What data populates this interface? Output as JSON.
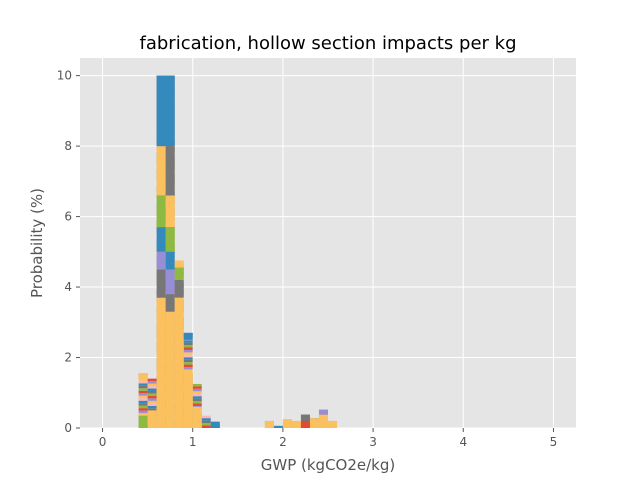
{
  "chart_data": {
    "type": "bar",
    "subtype": "stacked histogram",
    "title": "fabrication, hollow section impacts per kg",
    "xlabel": "GWP (kgCO2e/kg)",
    "ylabel": "Probability (%)",
    "xlim": [
      -0.25,
      5.25
    ],
    "ylim": [
      0,
      10.5
    ],
    "xticks": [
      "0",
      "1",
      "2",
      "3",
      "4",
      "5"
    ],
    "yticks": [
      "0",
      "2",
      "4",
      "6",
      "8",
      "10"
    ],
    "grid": true,
    "legend": "none",
    "bin_width": 0.1,
    "bins": [
      {
        "x": 0.4,
        "total": 1.55
      },
      {
        "x": 0.5,
        "total": 1.4
      },
      {
        "x": 0.6,
        "total": 10.0
      },
      {
        "x": 0.7,
        "total": 10.0
      },
      {
        "x": 0.8,
        "total": 4.75
      },
      {
        "x": 0.9,
        "total": 2.7
      },
      {
        "x": 1.0,
        "total": 1.25
      },
      {
        "x": 1.1,
        "total": 0.35
      },
      {
        "x": 1.2,
        "total": 0.18
      },
      {
        "x": 1.8,
        "total": 0.2
      },
      {
        "x": 1.9,
        "total": 0.06
      },
      {
        "x": 2.0,
        "total": 0.25
      },
      {
        "x": 2.1,
        "total": 0.2
      },
      {
        "x": 2.2,
        "total": 0.38
      },
      {
        "x": 2.3,
        "total": 0.28
      },
      {
        "x": 2.4,
        "total": 0.52
      },
      {
        "x": 2.5,
        "total": 0.2
      }
    ],
    "segments": [
      {
        "x": 0.6,
        "y0": 0.0,
        "y1": 3.7,
        "color": "#FBC15E"
      },
      {
        "x": 0.6,
        "y0": 3.7,
        "y1": 4.5,
        "color": "#777777"
      },
      {
        "x": 0.6,
        "y0": 4.5,
        "y1": 5.0,
        "color": "#988ED5"
      },
      {
        "x": 0.6,
        "y0": 5.0,
        "y1": 5.7,
        "color": "#348ABD"
      },
      {
        "x": 0.6,
        "y0": 5.7,
        "y1": 6.6,
        "color": "#8EBA42"
      },
      {
        "x": 0.6,
        "y0": 6.6,
        "y1": 8.0,
        "color": "#FBC15E"
      },
      {
        "x": 0.6,
        "y0": 8.0,
        "y1": 10.0,
        "color": "#777777"
      },
      {
        "x": 0.7,
        "y0": 0.0,
        "y1": 3.3,
        "color": "#FBC15E"
      },
      {
        "x": 0.7,
        "y0": 3.3,
        "y1": 3.8,
        "color": "#777777"
      },
      {
        "x": 0.7,
        "y0": 3.8,
        "y1": 4.5,
        "color": "#988ED5"
      },
      {
        "x": 0.7,
        "y0": 4.5,
        "y1": 5.0,
        "color": "#348ABD"
      },
      {
        "x": 0.7,
        "y0": 5.0,
        "y1": 5.7,
        "color": "#8EBA42"
      },
      {
        "x": 0.7,
        "y0": 5.7,
        "y1": 6.6,
        "color": "#FBC15E"
      },
      {
        "x": 0.7,
        "y0": 6.6,
        "y1": 8.0,
        "color": "#777777"
      },
      {
        "x": 0.7,
        "y0": 8.0,
        "y1": 10.0,
        "color": "#988ED5"
      },
      {
        "x": 0.6,
        "y0": 8.0,
        "y1": 10.0,
        "color": "#348ABD",
        "span": 2
      },
      {
        "x": 0.8,
        "y0": 0.0,
        "y1": 3.7,
        "color": "#FBC15E"
      },
      {
        "x": 0.8,
        "y0": 3.7,
        "y1": 4.2,
        "color": "#777777"
      },
      {
        "x": 0.8,
        "y0": 4.2,
        "y1": 4.55,
        "color": "#8EBA42"
      },
      {
        "x": 0.8,
        "y0": 4.55,
        "y1": 4.75,
        "color": "#FBC15E"
      },
      {
        "x": 0.9,
        "y0": 0.0,
        "y1": 1.6,
        "color": "#FBC15E"
      },
      {
        "x": 0.9,
        "y0": 2.5,
        "y1": 2.7,
        "color": "#348ABD"
      },
      {
        "x": 1.0,
        "y0": 0.0,
        "y1": 0.6,
        "color": "#FBC15E"
      },
      {
        "x": 0.4,
        "y0": 0.0,
        "y1": 0.35,
        "color": "#8EBA42"
      },
      {
        "x": 0.4,
        "y0": 1.4,
        "y1": 1.55,
        "color": "#FBC15E"
      },
      {
        "x": 0.5,
        "y0": 0.0,
        "y1": 0.5,
        "color": "#FBC15E"
      },
      {
        "x": 1.2,
        "y0": 0.0,
        "y1": 0.18,
        "color": "#348ABD"
      },
      {
        "x": 1.8,
        "y0": 0.0,
        "y1": 0.2,
        "color": "#FBC15E"
      },
      {
        "x": 1.9,
        "y0": 0.0,
        "y1": 0.06,
        "color": "#348ABD"
      },
      {
        "x": 2.0,
        "y0": 0.0,
        "y1": 0.25,
        "color": "#FBC15E"
      },
      {
        "x": 2.1,
        "y0": 0.0,
        "y1": 0.2,
        "color": "#FBC15E"
      },
      {
        "x": 2.2,
        "y0": 0.0,
        "y1": 0.2,
        "color": "#E24A33"
      },
      {
        "x": 2.2,
        "y0": 0.2,
        "y1": 0.38,
        "color": "#777777"
      },
      {
        "x": 2.3,
        "y0": 0.0,
        "y1": 0.28,
        "color": "#FBC15E"
      },
      {
        "x": 2.4,
        "y0": 0.0,
        "y1": 0.38,
        "color": "#FBC15E"
      },
      {
        "x": 2.4,
        "y0": 0.38,
        "y1": 0.52,
        "color": "#988ED5"
      },
      {
        "x": 2.5,
        "y0": 0.0,
        "y1": 0.2,
        "color": "#FBC15E"
      }
    ],
    "colors": {
      "red": "#E24A33",
      "blue": "#348ABD",
      "purple": "#988ED5",
      "gray": "#777777",
      "yellow": "#FBC15E",
      "green": "#8EBA42",
      "pink": "#FFB5B8",
      "axes_background": "#E5E5E5",
      "grid": "#FFFFFF"
    }
  }
}
